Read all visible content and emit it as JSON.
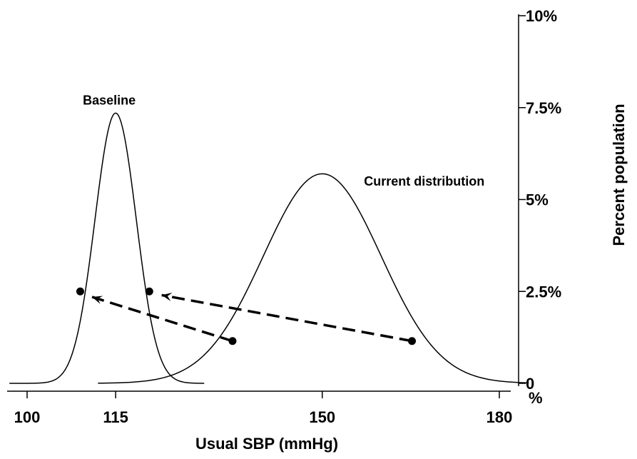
{
  "chart_data": {
    "type": "line",
    "title": "",
    "xlabel": "Usual SBP (mmHg)",
    "ylabel": "Percent population",
    "x_ticks": [
      100,
      115,
      150,
      180
    ],
    "y_ticks": [
      {
        "value": 0,
        "label": "0"
      },
      {
        "value": 2.5,
        "label": "2.5%"
      },
      {
        "value": 5,
        "label": "5%"
      },
      {
        "value": 7.5,
        "label": "7.5%"
      },
      {
        "value": 10,
        "label": "10%"
      }
    ],
    "y_unit_label": "%",
    "xlim": [
      97,
      185
    ],
    "ylim": [
      0,
      10
    ],
    "y_axis_side": "right",
    "grid": false,
    "series": [
      {
        "name": "Baseline",
        "curve": "normal",
        "mean": 115,
        "sd": 3.5,
        "peak": 7.35,
        "x_range": [
          97,
          130
        ]
      },
      {
        "name": "Current distribution",
        "curve": "normal",
        "mean": 150,
        "sd": 10,
        "peak": 5.7,
        "x_range": [
          112,
          185
        ]
      }
    ],
    "markers": [
      {
        "x": 109,
        "y": 2.5
      },
      {
        "x": 120.7,
        "y": 2.5
      },
      {
        "x": 134.8,
        "y": 1.15
      },
      {
        "x": 165.2,
        "y": 1.15
      }
    ],
    "arrows": [
      {
        "from": {
          "x": 134.8,
          "y": 1.15
        },
        "to": {
          "x": 111,
          "y": 2.35
        }
      },
      {
        "from": {
          "x": 165.2,
          "y": 1.15
        },
        "to": {
          "x": 122.8,
          "y": 2.4
        }
      }
    ],
    "annotations": [
      {
        "text": "Baseline",
        "x": 115,
        "y": 7.7
      },
      {
        "text": "Current distribution",
        "x": 150,
        "y": 5.5
      }
    ]
  }
}
